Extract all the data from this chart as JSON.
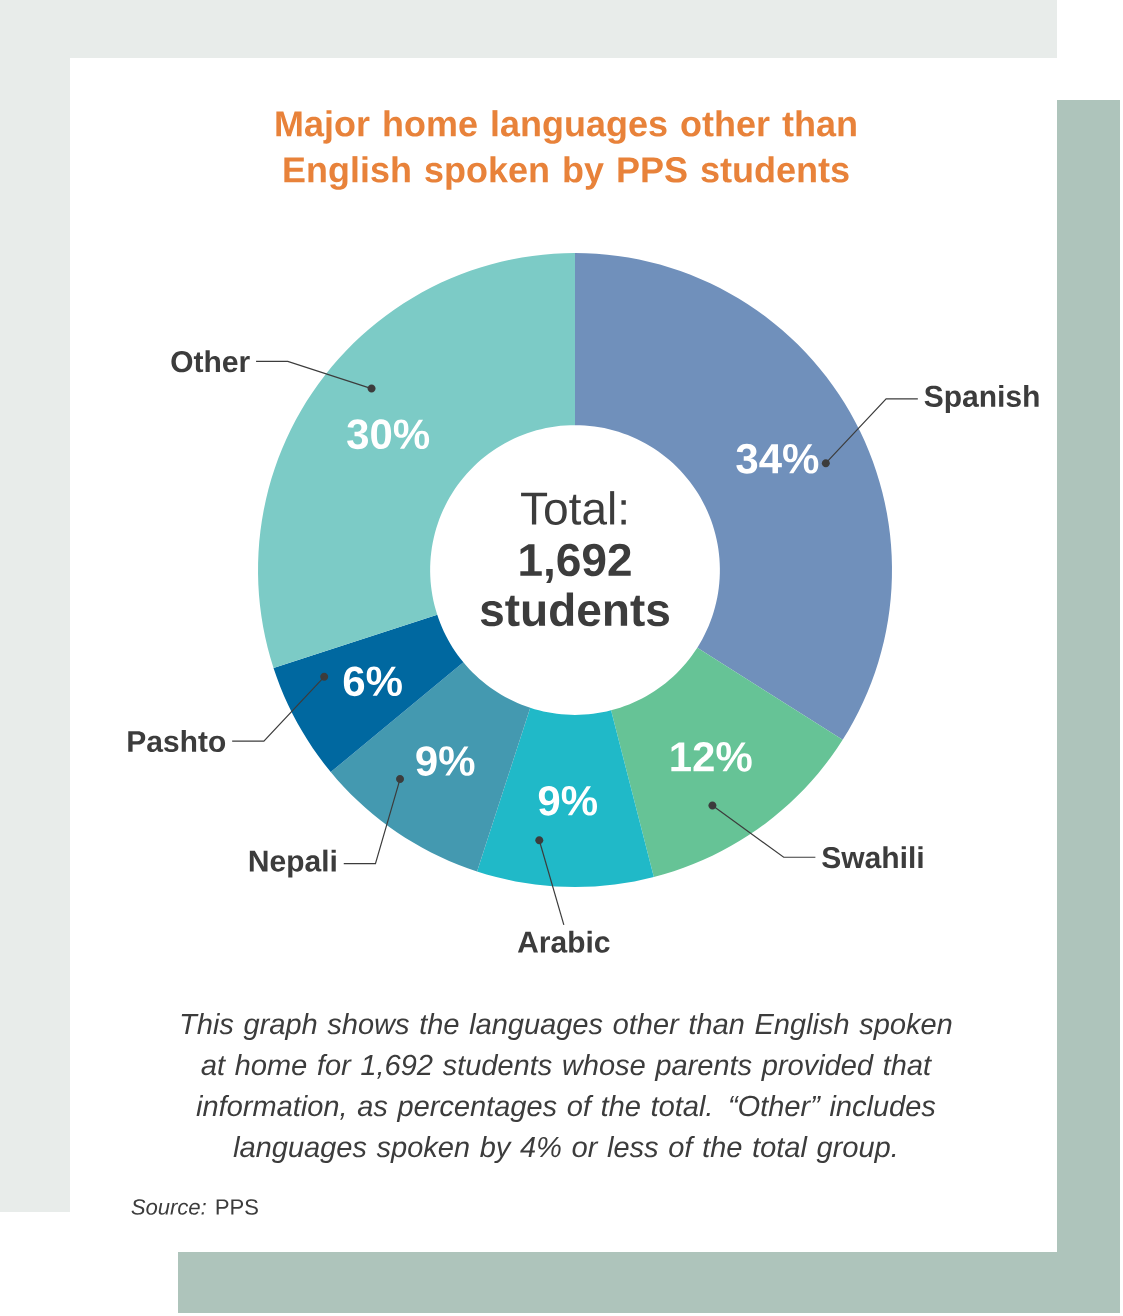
{
  "chart_data": {
    "type": "donut",
    "title": "Major home languages other than English spoken by PPS students",
    "categories": [
      "Spanish",
      "Swahili",
      "Arabic",
      "Nepali",
      "Pashto",
      "Other"
    ],
    "values": [
      34,
      12,
      9,
      9,
      6,
      30
    ],
    "colors": [
      "#7090bb",
      "#66c396",
      "#20b9c8",
      "#4499b0",
      "#0068a0",
      "#7ccbc6"
    ],
    "value_labels": [
      "34%",
      "12%",
      "9%",
      "9%",
      "6%",
      "30%"
    ],
    "annotations": [
      "Total:",
      "1,692 students",
      "This graph shows the languages other than English spoken at home for 1,692 students whose parents provided that information, as percentages of the total. “Other” includes languages spoken by 4% or less of the total group.",
      "*Source:* PPS"
    ]
  }
}
